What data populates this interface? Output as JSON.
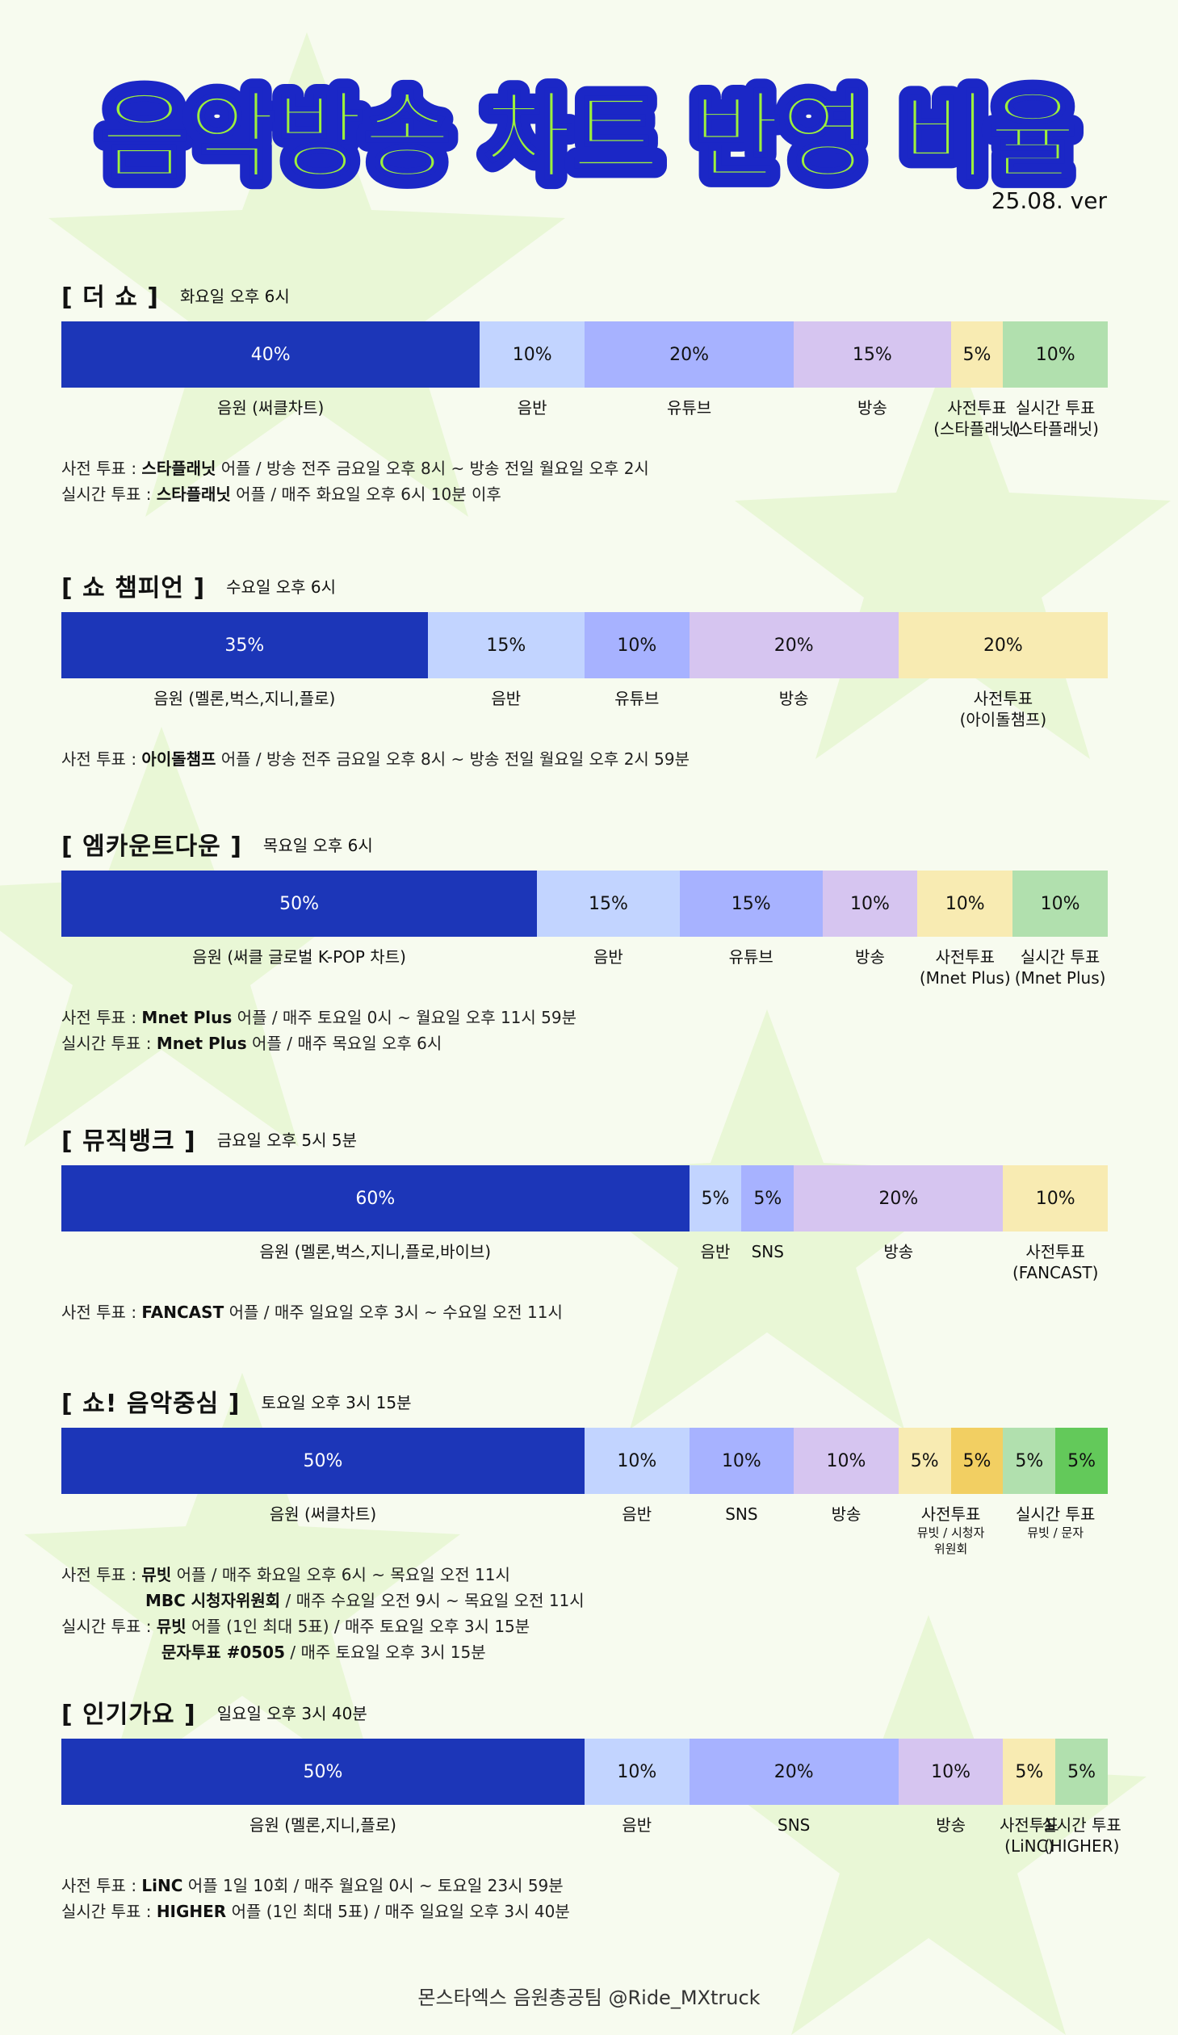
{
  "title": "음악방송 차트 반영 비율",
  "version": "25.08. ver",
  "colors": {
    "c1": "#1c36b8",
    "c2": "#c2d4ff",
    "c3": "#a7b2ff",
    "c4": "#d6c5f0",
    "c5": "#f8ebb2",
    "c6": "#b1e0ae",
    "c5b": "#f2cf62",
    "c6b": "#63c95a",
    "title_fill": "#9df03c",
    "title_stroke": "#1b27c6"
  },
  "sections": [
    {
      "name": "[ 더 쇼 ]",
      "time": "화요일 오후 6시",
      "segments": [
        {
          "value": 40,
          "label": "40%",
          "name": "음원 (써클차트)",
          "sub": "",
          "color": "c1"
        },
        {
          "value": 10,
          "label": "10%",
          "name": "음반",
          "sub": "",
          "color": "c2"
        },
        {
          "value": 20,
          "label": "20%",
          "name": "유튜브",
          "sub": "",
          "color": "c3"
        },
        {
          "value": 15,
          "label": "15%",
          "name": "방송",
          "sub": "",
          "color": "c4"
        },
        {
          "value": 5,
          "label": "5%",
          "name": "사전투표\n(스타플래닛)",
          "sub": "",
          "color": "c5"
        },
        {
          "value": 10,
          "label": "10%",
          "name": "실시간 투표\n(스타플래닛)",
          "sub": "",
          "color": "c6"
        }
      ],
      "notes": [
        {
          "prefix": "사전 투표 : ",
          "bold": "스타플래닛",
          "rest": " 어플 / 방송 전주 금요일 오후 8시 ~ 방송 전일 월요일 오후 2시",
          "style": ""
        },
        {
          "prefix": "실시간 투표 : ",
          "bold": "스타플래닛",
          "rest": " 어플 / 매주 화요일 오후 6시 10분 이후",
          "style": ""
        }
      ]
    },
    {
      "name": "[ 쇼 챔피언 ]",
      "time": "수요일 오후 6시",
      "segments": [
        {
          "value": 35,
          "label": "35%",
          "name": "음원 (멜론,벅스,지니,플로)",
          "sub": "",
          "color": "c1"
        },
        {
          "value": 15,
          "label": "15%",
          "name": "음반",
          "sub": "",
          "color": "c2"
        },
        {
          "value": 10,
          "label": "10%",
          "name": "유튜브",
          "sub": "",
          "color": "c3"
        },
        {
          "value": 20,
          "label": "20%",
          "name": "방송",
          "sub": "",
          "color": "c4"
        },
        {
          "value": 20,
          "label": "20%",
          "name": "사전투표\n(아이돌챔프)",
          "sub": "",
          "color": "c5"
        }
      ],
      "notes": [
        {
          "prefix": "사전 투표 : ",
          "bold": "아이돌챔프",
          "rest": " 어플 / 방송 전주 금요일 오후 8시 ~ 방송 전일 월요일 오후 2시 59분",
          "style": ""
        }
      ]
    },
    {
      "name": "[ 엠카운트다운 ]",
      "time": "목요일 오후 6시",
      "segments": [
        {
          "value": 50,
          "label": "50%",
          "name": "음원 (써클 글로벌 K-POP 차트)",
          "sub": "",
          "color": "c1"
        },
        {
          "value": 15,
          "label": "15%",
          "name": "음반",
          "sub": "",
          "color": "c2"
        },
        {
          "value": 15,
          "label": "15%",
          "name": "유튜브",
          "sub": "",
          "color": "c3"
        },
        {
          "value": 10,
          "label": "10%",
          "name": "방송",
          "sub": "",
          "color": "c4"
        },
        {
          "value": 10,
          "label": "10%",
          "name": "사전투표\n(Mnet Plus)",
          "sub": "",
          "color": "c5"
        },
        {
          "value": 10,
          "label": "10%",
          "name": "실시간 투표\n(Mnet Plus)",
          "sub": "",
          "color": "c6"
        }
      ],
      "notes": [
        {
          "prefix": "사전 투표 : ",
          "bold": "Mnet Plus",
          "rest": " 어플 / 매주 토요일 0시 ~ 월요일 오후 11시 59분",
          "style": ""
        },
        {
          "prefix": "실시간 투표 : ",
          "bold": "Mnet Plus",
          "rest": " 어플 / 매주 목요일 오후 6시",
          "style": ""
        }
      ]
    },
    {
      "name": "[ 뮤직뱅크 ]",
      "time": "금요일 오후 5시 5분",
      "segments": [
        {
          "value": 60,
          "label": "60%",
          "name": "음원 (멜론,벅스,지니,플로,바이브)",
          "sub": "",
          "color": "c1"
        },
        {
          "value": 5,
          "label": "5%",
          "name": "음반",
          "sub": "",
          "color": "c2"
        },
        {
          "value": 5,
          "label": "5%",
          "name": "SNS",
          "sub": "",
          "color": "c3"
        },
        {
          "value": 20,
          "label": "20%",
          "name": "방송",
          "sub": "",
          "color": "c4"
        },
        {
          "value": 10,
          "label": "10%",
          "name": "사전투표\n(FANCAST)",
          "sub": "",
          "color": "c5"
        }
      ],
      "notes": [
        {
          "prefix": "사전 투표 : ",
          "bold": "FANCAST",
          "rest": " 어플 / 매주 일요일 오후 3시 ~ 수요일 오전 11시",
          "style": ""
        }
      ]
    },
    {
      "name": "[ 쇼! 음악중심 ]",
      "time": "토요일 오후 3시 15분",
      "segments": [
        {
          "value": 50,
          "label": "50%",
          "name": "음원 (써클차트)",
          "sub": "",
          "color": "c1"
        },
        {
          "value": 10,
          "label": "10%",
          "name": "음반",
          "sub": "",
          "color": "c2"
        },
        {
          "value": 10,
          "label": "10%",
          "name": "SNS",
          "sub": "",
          "color": "c3"
        },
        {
          "value": 10,
          "label": "10%",
          "name": "방송",
          "sub": "",
          "color": "c4"
        },
        {
          "value": 5,
          "label": "5%",
          "name": "사전투표",
          "sub": "뮤빗 / 시청자\n위원회",
          "color": "c5"
        },
        {
          "value": 5,
          "label": "5%",
          "name": "",
          "sub": "",
          "color": "c5b"
        },
        {
          "value": 5,
          "label": "5%",
          "name": "실시간 투표",
          "sub": "뮤빗 / 문자",
          "color": "c6"
        },
        {
          "value": 5,
          "label": "5%",
          "name": "",
          "sub": "",
          "color": "c6b"
        }
      ],
      "notes": [
        {
          "prefix": "사전 투표 : ",
          "bold": "뮤빗",
          "rest": " 어플 / 매주  화요일 오후 6시 ~ 목요일 오전 11시",
          "style": ""
        },
        {
          "prefix": "",
          "bold": "MBC 시청자위원회",
          "rest": " / 매주 수요일 오전 9시 ~ 목요일 오전 11시",
          "style": "indent"
        },
        {
          "prefix": "실시간 투표 : ",
          "bold": "뮤빗",
          "rest": " 어플 (1인 최대 5표)  / 매주 토요일 오후 3시 15분",
          "style": ""
        },
        {
          "prefix": "",
          "bold": "문자투표 #0505",
          "rest": " / 매주 토요일 오후 3시 15분",
          "style": "indent2"
        }
      ]
    },
    {
      "name": "[ 인기가요 ]",
      "time": "일요일 오후 3시 40분",
      "segments": [
        {
          "value": 50,
          "label": "50%",
          "name": "음원 (멜론,지니,플로)",
          "sub": "",
          "color": "c1"
        },
        {
          "value": 10,
          "label": "10%",
          "name": "음반",
          "sub": "",
          "color": "c2"
        },
        {
          "value": 20,
          "label": "20%",
          "name": "SNS",
          "sub": "",
          "color": "c3"
        },
        {
          "value": 10,
          "label": "10%",
          "name": "방송",
          "sub": "",
          "color": "c4"
        },
        {
          "value": 5,
          "label": "5%",
          "name": "사전투표\n(LiNC)",
          "sub": "",
          "color": "c5"
        },
        {
          "value": 5,
          "label": "5%",
          "name": "실시간 투표\n(HIGHER)",
          "sub": "",
          "color": "c6"
        }
      ],
      "notes": [
        {
          "prefix": "사전 투표 : ",
          "bold": "LiNC",
          "rest": " 어플 1일 10회 / 매주 월요일 0시 ~ 토요일  23시 59분",
          "style": ""
        },
        {
          "prefix": "실시간 투표 : ",
          "bold": "HIGHER",
          "rest": " 어플 (1인 최대 5표) / 매주 일요일 오후 3시 40분",
          "style": ""
        }
      ]
    }
  ],
  "footer": "몬스타엑스 음원총공팀  @Ride_MXtruck",
  "chart_data": [
    {
      "type": "bar",
      "title": "[ 더 쇼 ]",
      "categories": [
        "음원 (써클차트)",
        "음반",
        "유튜브",
        "방송",
        "사전투표 (스타플래닛)",
        "실시간 투표 (스타플래닛)"
      ],
      "values": [
        40,
        10,
        20,
        15,
        5,
        10
      ]
    },
    {
      "type": "bar",
      "title": "[ 쇼 챔피언 ]",
      "categories": [
        "음원 (멜론,벅스,지니,플로)",
        "음반",
        "유튜브",
        "방송",
        "사전투표 (아이돌챔프)"
      ],
      "values": [
        35,
        15,
        10,
        20,
        20
      ]
    },
    {
      "type": "bar",
      "title": "[ 엠카운트다운 ]",
      "categories": [
        "음원 (써클 글로벌 K-POP 차트)",
        "음반",
        "유튜브",
        "방송",
        "사전투표 (Mnet Plus)",
        "실시간 투표 (Mnet Plus)"
      ],
      "values": [
        50,
        15,
        15,
        10,
        10,
        10
      ]
    },
    {
      "type": "bar",
      "title": "[ 뮤직뱅크 ]",
      "categories": [
        "음원 (멜론,벅스,지니,플로,바이브)",
        "음반",
        "SNS",
        "방송",
        "사전투표 (FANCAST)"
      ],
      "values": [
        60,
        5,
        5,
        20,
        10
      ]
    },
    {
      "type": "bar",
      "title": "[ 쇼! 음악중심 ]",
      "categories": [
        "음원 (써클차트)",
        "음반",
        "SNS",
        "방송",
        "사전투표 뮤빗",
        "사전투표 시청자위원회",
        "실시간 투표 뮤빗",
        "실시간 투표 문자"
      ],
      "values": [
        50,
        10,
        10,
        10,
        5,
        5,
        5,
        5
      ]
    },
    {
      "type": "bar",
      "title": "[ 인기가요 ]",
      "categories": [
        "음원 (멜론,지니,플로)",
        "음반",
        "SNS",
        "방송",
        "사전투표 (LiNC)",
        "실시간 투표 (HIGHER)"
      ],
      "values": [
        50,
        10,
        20,
        10,
        5,
        5
      ]
    }
  ]
}
